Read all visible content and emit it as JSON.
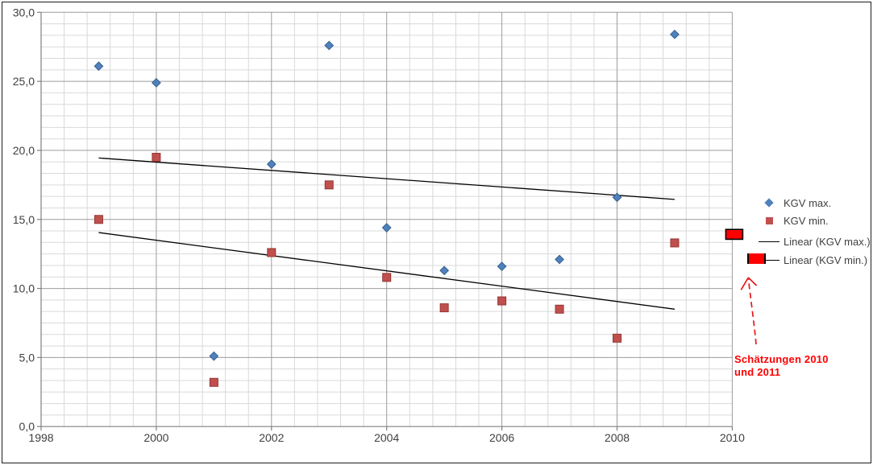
{
  "chart_data": {
    "type": "scatter",
    "title": "",
    "x_axis": {
      "min": 1998,
      "max": 2010,
      "major_unit": 2,
      "minor_unit": 0.4,
      "tick_labels": [
        "1998",
        "2000",
        "2002",
        "2004",
        "2006",
        "2008",
        "2010"
      ]
    },
    "y_axis": {
      "min": 0,
      "max": 30,
      "major_unit": 5,
      "minor_divisions_per_major": 6,
      "tick_labels_top_down": [
        "30,0",
        "25,0",
        "20,0",
        "15,0",
        "10,0",
        "5,0",
        "0,0"
      ]
    },
    "grid": {
      "minor": true,
      "major": true
    },
    "series": [
      {
        "name": "KGV max.",
        "marker": "diamond",
        "color": "#4F81BD",
        "edge": "#36618E",
        "x": [
          1999,
          2000,
          2001,
          2002,
          2003,
          2004,
          2005,
          2006,
          2007,
          2008,
          2009
        ],
        "y": [
          26.1,
          24.9,
          5.1,
          19.0,
          27.6,
          14.4,
          11.3,
          11.6,
          12.1,
          16.6,
          28.4
        ]
      },
      {
        "name": "KGV min.",
        "marker": "square",
        "color": "#C0504D",
        "edge": "#943634",
        "x": [
          1999,
          2000,
          2001,
          2002,
          2003,
          2004,
          2005,
          2006,
          2007,
          2008,
          2009
        ],
        "y": [
          15.0,
          19.5,
          3.2,
          12.6,
          17.5,
          10.8,
          8.6,
          9.1,
          8.5,
          6.4,
          13.3
        ]
      }
    ],
    "trendlines": [
      {
        "name": "Linear (KGV max.)",
        "start": [
          1999,
          19.45
        ],
        "end": [
          2009,
          16.45
        ],
        "color": "#000000"
      },
      {
        "name": "Linear (KGV min.)",
        "start": [
          1999,
          14.05
        ],
        "end": [
          2009,
          8.5
        ],
        "color": "#000000"
      }
    ],
    "estimate_highlight": {
      "year": 2010,
      "value": 14.0,
      "box_color": "#FF0000",
      "border_color": "#000000"
    },
    "legend_position": "right"
  },
  "legend": {
    "items": [
      {
        "label": "KGV max.",
        "marker": "diamond",
        "color": "#4F81BD"
      },
      {
        "label": "KGV min.",
        "marker": "square",
        "color": "#C0504D"
      },
      {
        "label": "Linear (KGV max.)",
        "marker": "line",
        "color": "#000000"
      },
      {
        "label": "Linear (KGV min.)",
        "marker": "line",
        "color": "#000000",
        "highlighted": true
      }
    ]
  },
  "annotation": {
    "text": "Schätzungen 2010 und 2011",
    "color": "#FF0000"
  },
  "colors": {
    "series_max": "#4F81BD",
    "series_min": "#C0504D",
    "highlight_red": "#FF0000",
    "arrow_red": "#E01B1B",
    "grid_minor": "#D9D9D9",
    "grid_major": "#9C9C9C",
    "axis": "#808080",
    "tick_text": "#404040",
    "trend": "#000000"
  }
}
